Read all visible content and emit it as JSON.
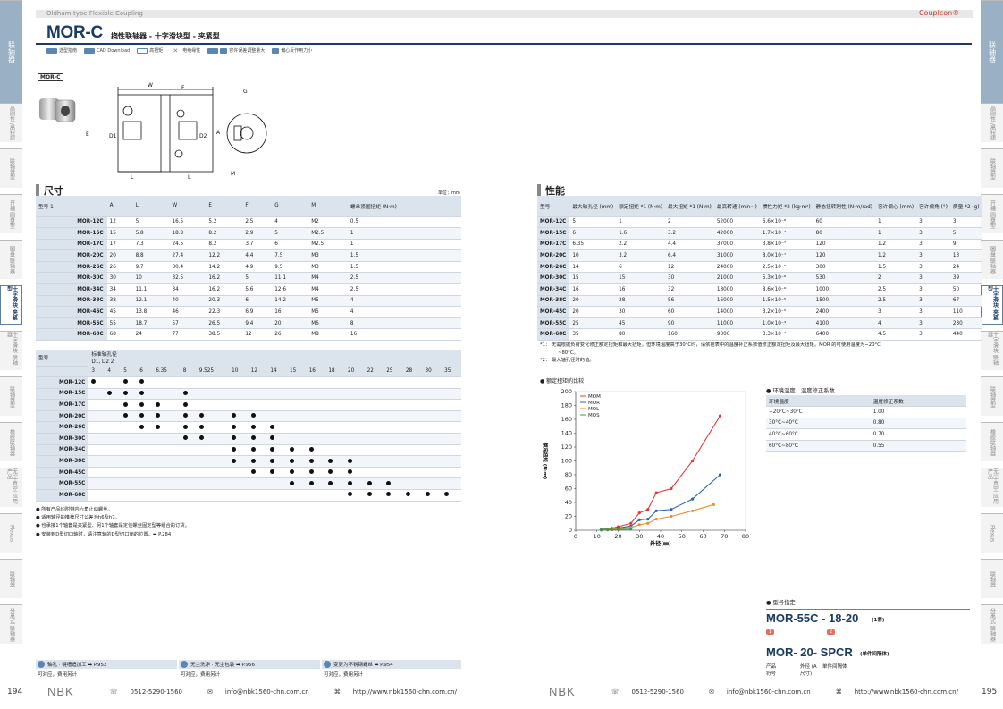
{
  "header": {
    "series": "Oldham-type Flexible Coupling",
    "brand": "Couplcon®",
    "model": "MOR-C",
    "subtitle": "挠性联轴器 - 十字滑块型 - 夹紧型"
  },
  "icons": [
    {
      "icon": "selection-guide-icon",
      "label": "选型指南"
    },
    {
      "icon": "cad-download-icon",
      "label": "CAD Download"
    },
    {
      "icon": "high-torque-icon",
      "label": "高扭矩"
    },
    {
      "icon": "insulation-icon",
      "label": "电绝缘性"
    },
    {
      "icon": "eccentric-icon",
      "label": "容许误差调整量大"
    },
    {
      "icon": "easy-disassembly-icon",
      "label": "偏心反作用力小"
    }
  ],
  "drawing": {
    "tag": "MOR-C",
    "labels": [
      "W",
      "F",
      "L",
      "L",
      "E",
      "D1",
      "D2",
      "A",
      "G",
      "M"
    ]
  },
  "dims": {
    "title": "尺寸",
    "unit": "单位：mm",
    "headers": [
      "型号 1",
      "A",
      "L",
      "W",
      "E",
      "F",
      "G",
      "M",
      "螺丝紧固扭矩 (N·m)"
    ],
    "rows": [
      [
        "MOR-12C",
        "12",
        "5",
        "16.5",
        "5.2",
        "2.5",
        "4",
        "M2",
        "0.5"
      ],
      [
        "MOR-15C",
        "15",
        "5.8",
        "18.8",
        "8.2",
        "2.9",
        "5",
        "M2.5",
        "1"
      ],
      [
        "MOR-17C",
        "17",
        "7.3",
        "24.5",
        "8.2",
        "3.7",
        "6",
        "M2.5",
        "1"
      ],
      [
        "MOR-20C",
        "20",
        "8.8",
        "27.4",
        "12.2",
        "4.4",
        "7.5",
        "M3",
        "1.5"
      ],
      [
        "MOR-26C",
        "26",
        "9.7",
        "30.4",
        "14.2",
        "4.9",
        "9.5",
        "M3",
        "1.5"
      ],
      [
        "MOR-30C",
        "30",
        "10",
        "32.5",
        "16.2",
        "5",
        "11.1",
        "M4",
        "2.5"
      ],
      [
        "MOR-34C",
        "34",
        "11.1",
        "34",
        "16.2",
        "5.6",
        "12.6",
        "M4",
        "2.5"
      ],
      [
        "MOR-38C",
        "38",
        "12.1",
        "40",
        "20.3",
        "6",
        "14.2",
        "M5",
        "4"
      ],
      [
        "MOR-45C",
        "45",
        "13.8",
        "46",
        "22.3",
        "6.9",
        "16",
        "M5",
        "4"
      ],
      [
        "MOR-55C",
        "55",
        "18.7",
        "57",
        "26.5",
        "9.4",
        "20",
        "M6",
        "8"
      ],
      [
        "MOR-68C",
        "68",
        "24",
        "77",
        "38.5",
        "12",
        "26",
        "M8",
        "16"
      ]
    ]
  },
  "bores": {
    "head_model": "型号",
    "head_bore": "标准轴孔径",
    "head_d": "D1, D2 2",
    "sizes": [
      "3",
      "4",
      "5",
      "6",
      "6.35",
      "8",
      "9.525",
      "10",
      "12",
      "14",
      "15",
      "16",
      "18",
      "20",
      "22",
      "25",
      "28",
      "30",
      "35"
    ],
    "models": [
      "MOR-12C",
      "MOR-15C",
      "MOR-17C",
      "MOR-20C",
      "MOR-26C",
      "MOR-30C",
      "MOR-34C",
      "MOR-38C",
      "MOR-45C",
      "MOR-55C",
      "MOR-68C"
    ]
  },
  "notes": [
    "● 所有产品均附带内六角止动螺丝。",
    "● 适用轴径的推荐尺寸公差为h6及h7。",
    "● 也承接1个轴套是夹紧型、另1个轴套是定位螺丝固定型等组合的订货。",
    "● 安装到D型切口轴时，请注意轴的D型切口面的位置。➡ P.284"
  ],
  "links": [
    {
      "title": "轴孔 · 键槽追加工 ➡ P.952",
      "text": "可对应，费用另计"
    },
    {
      "title": "无尘洗净 · 无尘包装 ➡ P.956",
      "text": "可对应，费用另计"
    },
    {
      "title": "变更为不锈钢螺丝 ➡ P.954",
      "text": "可对应，费用另计"
    }
  ],
  "perf": {
    "title": "性能",
    "headers": [
      "型号",
      "最大轴孔径 (mm)",
      "额定扭矩 *1 (N·m)",
      "最大扭矩 *1 (N·m)",
      "最高转速 (min⁻¹)",
      "惯性力矩 *2 (kg·m²)",
      "静态扭转刚性 (N·m/rad)",
      "容许偏心 (mm)",
      "容许偏角 (°)",
      "质量 *2 (g)"
    ],
    "rows": [
      [
        "MOR-12C",
        "5",
        "1",
        "2",
        "52000",
        "6.6×10⁻⁸",
        "60",
        "1",
        "3",
        "3"
      ],
      [
        "MOR-15C",
        "6",
        "1.6",
        "3.2",
        "42000",
        "1.7×10⁻⁷",
        "80",
        "1",
        "3",
        "5"
      ],
      [
        "MOR-17C",
        "6.35",
        "2.2",
        "4.4",
        "37000",
        "3.8×10⁻⁷",
        "120",
        "1.2",
        "3",
        "9"
      ],
      [
        "MOR-20C",
        "10",
        "3.2",
        "6.4",
        "31000",
        "8.0×10⁻⁷",
        "120",
        "1.2",
        "3",
        "13"
      ],
      [
        "MOR-26C",
        "14",
        "6",
        "12",
        "24000",
        "2.5×10⁻⁶",
        "300",
        "1.5",
        "3",
        "24"
      ],
      [
        "MOR-30C",
        "15",
        "15",
        "30",
        "21000",
        "5.3×10⁻⁶",
        "530",
        "2",
        "3",
        "39"
      ],
      [
        "MOR-34C",
        "16",
        "16",
        "32",
        "18000",
        "8.6×10⁻⁶",
        "1000",
        "2.5",
        "3",
        "50"
      ],
      [
        "MOR-38C",
        "20",
        "28",
        "56",
        "16000",
        "1.5×10⁻⁵",
        "1500",
        "2.5",
        "3",
        "67"
      ],
      [
        "MOR-45C",
        "20",
        "30",
        "60",
        "14000",
        "3.2×10⁻⁵",
        "2400",
        "3",
        "3",
        "110"
      ],
      [
        "MOR-55C",
        "25",
        "45",
        "90",
        "11000",
        "1.0×10⁻⁴",
        "4100",
        "4",
        "3",
        "230"
      ],
      [
        "MOR-68C",
        "35",
        "80",
        "160",
        "9000",
        "3.3×10⁻⁴",
        "6400",
        "4.5",
        "3",
        "440"
      ]
    ],
    "notes": [
      "*1： 无需根据负荷变化修正额定扭矩和最大扭矩。但环境温度高于30°C时，请依据表中的温度补正系数值修正额定扭矩及最大扭矩。MOR 的可使用温度为−20°C",
      "~80°C。",
      "*2： 最大轴孔径时的值。"
    ]
  },
  "chart_title": "● 额定扭矩的比较",
  "chart_data": {
    "type": "line",
    "title": "额定扭矩的比较",
    "xlabel": "外径(㎜)",
    "ylabel": "额定扭矩 (N·m)",
    "xlim": [
      0,
      80
    ],
    "ylim": [
      0,
      200
    ],
    "xticks": [
      0,
      10,
      20,
      30,
      40,
      50,
      60,
      70,
      80
    ],
    "yticks": [
      0,
      20,
      40,
      60,
      80,
      100,
      120,
      140,
      160,
      180,
      200
    ],
    "legend": "top-left",
    "series": [
      {
        "name": "MOM",
        "color": "#e53935",
        "x": [
          12,
          15,
          17,
          20,
          26,
          30,
          34,
          38,
          45,
          55,
          68
        ],
        "y": [
          1.2,
          2,
          3,
          5,
          10,
          25,
          30,
          54,
          60,
          100,
          165
        ]
      },
      {
        "name": "MOR",
        "color": "#2e62b3",
        "x": [
          12,
          15,
          17,
          20,
          26,
          30,
          34,
          38,
          45,
          55,
          68
        ],
        "y": [
          1,
          1.6,
          2.2,
          3.2,
          6,
          15,
          16,
          28,
          30,
          45,
          80
        ]
      },
      {
        "name": "MOL",
        "color": "#f28b30",
        "x": [
          12,
          15,
          17,
          20,
          26,
          30,
          34,
          38,
          45,
          55,
          65
        ],
        "y": [
          0.5,
          1,
          1.5,
          2,
          4,
          8,
          10,
          16,
          20,
          28,
          37
        ]
      },
      {
        "name": "MOS",
        "color": "#2e9e4e",
        "x": [
          12,
          15,
          17,
          20,
          26
        ],
        "y": [
          0.3,
          0.5,
          0.7,
          1,
          1.5
        ]
      }
    ]
  },
  "temp": {
    "title": "● 环境温度、温度修正系数",
    "headers": [
      "环境温度",
      "温度修正系数"
    ],
    "rows": [
      [
        "−20°C~30°C",
        "1.00"
      ],
      [
        "30°C~40°C",
        "0.80"
      ],
      [
        "40°C~60°C",
        "0.70"
      ],
      [
        "60°C~80°C",
        "0.55"
      ]
    ]
  },
  "order": {
    "title": "● 型号指定",
    "code1": "MOR-55C - 18-20",
    "code1_note": "(1套)",
    "marker1": "1",
    "marker2": "2",
    "code2": "MOR- 20- SPCR",
    "code2_note": "(单件间隔体)",
    "labels": [
      "产品 符号",
      "外径 (A尺寸)",
      "单件间隔体"
    ]
  },
  "footer": {
    "left_page": "194",
    "right_page": "195",
    "brand": "NBK",
    "phone": "0512-5290-1560",
    "email": "info@nbk1560-chn.com.cn",
    "web": "http://www.nbk1560-chn.com.cn/"
  },
  "side_left": [
    "联轴器",
    "高刚性 /高扭矩",
    "联轴器型",
    "开槽 圆盘型",
    "圆盘 联轴器",
    "十字滑块 夹紧型",
    "十字滑块 联轴器",
    "联轴器型",
    "橡胶联轴器",
    "无尘·真空 应用产品",
    "Flexus",
    "联轴器",
    "分离式 联轴器"
  ],
  "side_right": [
    "联轴器",
    "高刚性 /高扭矩",
    "联轴器型",
    "开槽 圆盘型",
    "圆盘 联轴器",
    "十字滑块 夹紧型",
    "十字滑块 联轴器",
    "联轴器型",
    "橡胶联轴器",
    "无尘·真空 应用产品",
    "Flexus",
    "联轴器",
    "分离式 联轴器"
  ]
}
